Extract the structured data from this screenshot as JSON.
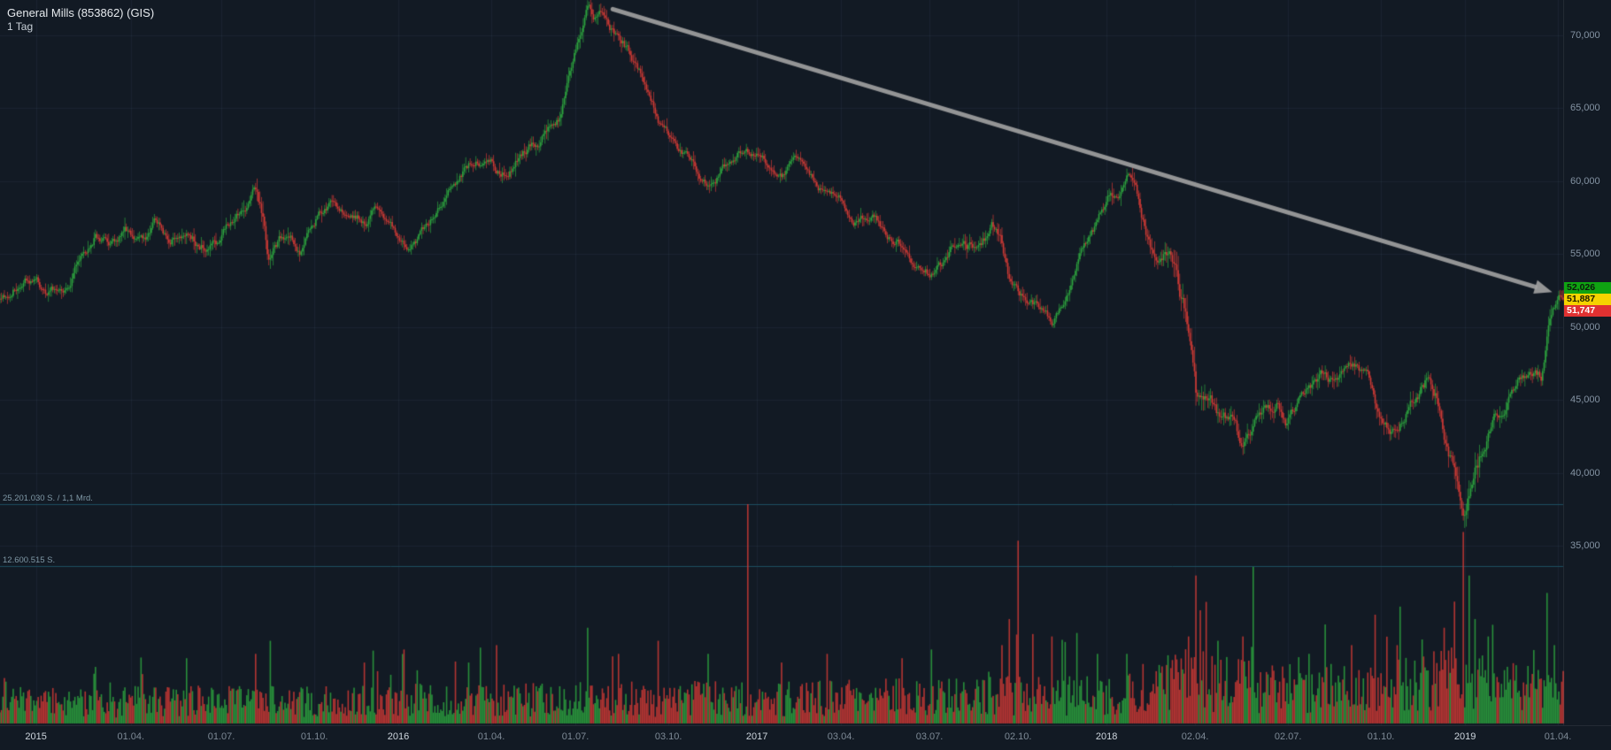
{
  "header": {
    "title": "General Mills (853862) (GIS)",
    "timeframe": "1 Tag"
  },
  "price_axis": {
    "labels": [
      "70,000",
      "65,000",
      "60,000",
      "55,000",
      "50,000",
      "45,000",
      "40,000",
      "35,000"
    ],
    "values": [
      70,
      65,
      60,
      55,
      50,
      45,
      40,
      35
    ]
  },
  "time_axis": [
    {
      "label": "2015",
      "t": 0.023,
      "major": true
    },
    {
      "label": "01.04.",
      "t": 0.0837,
      "major": false
    },
    {
      "label": "01.07.",
      "t": 0.1416,
      "major": false
    },
    {
      "label": "01.10.",
      "t": 0.2011,
      "major": false
    },
    {
      "label": "2016",
      "t": 0.2548,
      "major": true
    },
    {
      "label": "01.04.",
      "t": 0.3143,
      "major": false
    },
    {
      "label": "01.07.",
      "t": 0.3681,
      "major": false
    },
    {
      "label": "03.10.",
      "t": 0.4276,
      "major": false
    },
    {
      "label": "2017",
      "t": 0.4842,
      "major": true
    },
    {
      "label": "03.04.",
      "t": 0.538,
      "major": false
    },
    {
      "label": "03.07.",
      "t": 0.5946,
      "major": false
    },
    {
      "label": "02.10.",
      "t": 0.6513,
      "major": false
    },
    {
      "label": "2018",
      "t": 0.7079,
      "major": true
    },
    {
      "label": "02.04.",
      "t": 0.7645,
      "major": false
    },
    {
      "label": "02.07.",
      "t": 0.824,
      "major": false
    },
    {
      "label": "01.10.",
      "t": 0.8834,
      "major": false
    },
    {
      "label": "2019",
      "t": 0.9372,
      "major": true
    },
    {
      "label": "01.04.",
      "t": 0.9966,
      "major": false
    }
  ],
  "price_tags": [
    {
      "name": "ask",
      "label": "52,026",
      "value": 52.026,
      "bg": "#0fa312",
      "fg": "#0b1a0b"
    },
    {
      "name": "last",
      "label": "51,887",
      "value": 51.887,
      "bg": "#f5d300",
      "fg": "#1a1a00"
    },
    {
      "name": "bid",
      "label": "51,747",
      "value": 51.747,
      "bg": "#e03131",
      "fg": "#ffffff"
    }
  ],
  "volume_levels": [
    {
      "label": "25.201.030 S. / 1,1 Mrd.",
      "value": 25201030
    },
    {
      "label": "12.600.515 S.",
      "value": 12600515
    }
  ],
  "colors": {
    "background": "#121a24",
    "grid": "rgba(130,155,185,0.08)",
    "bull": "#2da33e",
    "bear": "#cf3a35",
    "volume_line": "#1d4e60",
    "arrow": "#a2a2a2",
    "axis_text": "#8493a3",
    "axis_text_major": "#cdd5dd"
  },
  "chart_data": {
    "type": "candlestick",
    "title": "General Mills (853862) (GIS)",
    "timeframe": "1 Tag",
    "x_range": [
      "2015-01",
      "2019-04"
    ],
    "y_range": [
      33,
      73.5
    ],
    "y_unit": "price, German decimal-comma format (e.g. 52,026)",
    "legend_position": "none",
    "grid": true,
    "current_prices": {
      "ask": 52.026,
      "last": 51.887,
      "bid": 51.747
    },
    "trend_arrow": {
      "from_t": 0.392,
      "from_price": 71.8,
      "to_t": 0.993,
      "to_price": 52.4
    },
    "price_anchors": [
      [
        0.0,
        51.9
      ],
      [
        0.01,
        53.1
      ],
      [
        0.023,
        53.6
      ],
      [
        0.03,
        52.0
      ],
      [
        0.036,
        52.6
      ],
      [
        0.042,
        52.9
      ],
      [
        0.052,
        54.9
      ],
      [
        0.061,
        56.4
      ],
      [
        0.071,
        55.7
      ],
      [
        0.08,
        56.5
      ],
      [
        0.09,
        55.9
      ],
      [
        0.099,
        56.9
      ],
      [
        0.109,
        56.0
      ],
      [
        0.119,
        57.0
      ],
      [
        0.128,
        55.9
      ],
      [
        0.138,
        55.8
      ],
      [
        0.148,
        57.2
      ],
      [
        0.157,
        58.5
      ],
      [
        0.164,
        59.6
      ],
      [
        0.169,
        57.0
      ],
      [
        0.1725,
        54.3
      ],
      [
        0.176,
        55.9
      ],
      [
        0.186,
        56.5
      ],
      [
        0.192,
        55.3
      ],
      [
        0.195,
        56.0
      ],
      [
        0.205,
        58.0
      ],
      [
        0.214,
        58.4
      ],
      [
        0.224,
        56.9
      ],
      [
        0.233,
        57.3
      ],
      [
        0.243,
        58.3
      ],
      [
        0.252,
        56.8
      ],
      [
        0.262,
        54.9
      ],
      [
        0.271,
        56.3
      ],
      [
        0.281,
        58.4
      ],
      [
        0.29,
        59.6
      ],
      [
        0.3,
        61.1
      ],
      [
        0.31,
        61.6
      ],
      [
        0.32,
        60.7
      ],
      [
        0.329,
        61.3
      ],
      [
        0.339,
        62.7
      ],
      [
        0.348,
        63.3
      ],
      [
        0.358,
        64.6
      ],
      [
        0.364,
        67.0
      ],
      [
        0.37,
        70.3
      ],
      [
        0.3755,
        72.4
      ],
      [
        0.381,
        71.1
      ],
      [
        0.388,
        71.6
      ],
      [
        0.396,
        70.1
      ],
      [
        0.403,
        68.9
      ],
      [
        0.41,
        67.6
      ],
      [
        0.415,
        66.0
      ],
      [
        0.421,
        64.3
      ],
      [
        0.424,
        63.6
      ],
      [
        0.434,
        61.9
      ],
      [
        0.443,
        61.1
      ],
      [
        0.453,
        59.7
      ],
      [
        0.463,
        60.9
      ],
      [
        0.472,
        62.1
      ],
      [
        0.481,
        61.8
      ],
      [
        0.491,
        61.1
      ],
      [
        0.5,
        60.3
      ],
      [
        0.51,
        61.3
      ],
      [
        0.52,
        60.4
      ],
      [
        0.529,
        59.2
      ],
      [
        0.539,
        58.6
      ],
      [
        0.549,
        57.4
      ],
      [
        0.558,
        57.7
      ],
      [
        0.568,
        56.2
      ],
      [
        0.577,
        55.6
      ],
      [
        0.587,
        54.1
      ],
      [
        0.596,
        53.6
      ],
      [
        0.606,
        54.9
      ],
      [
        0.616,
        56.1
      ],
      [
        0.625,
        55.3
      ],
      [
        0.635,
        56.9
      ],
      [
        0.641,
        55.4
      ],
      [
        0.646,
        52.7
      ],
      [
        0.654,
        52.0
      ],
      [
        0.664,
        51.2
      ],
      [
        0.673,
        50.2
      ],
      [
        0.683,
        52.6
      ],
      [
        0.692,
        54.9
      ],
      [
        0.702,
        57.0
      ],
      [
        0.708,
        58.7
      ],
      [
        0.715,
        59.4
      ],
      [
        0.721,
        60.4
      ],
      [
        0.727,
        58.9
      ],
      [
        0.731,
        57.1
      ],
      [
        0.74,
        54.4
      ],
      [
        0.746,
        55.4
      ],
      [
        0.752,
        53.7
      ],
      [
        0.758,
        50.9
      ],
      [
        0.762,
        49.4
      ],
      [
        0.7655,
        45.4
      ],
      [
        0.769,
        44.9
      ],
      [
        0.774,
        45.7
      ],
      [
        0.779,
        44.3
      ],
      [
        0.785,
        43.9
      ],
      [
        0.79,
        43.3
      ],
      [
        0.795,
        41.4
      ],
      [
        0.8,
        42.4
      ],
      [
        0.808,
        44.0
      ],
      [
        0.817,
        45.0
      ],
      [
        0.823,
        43.7
      ],
      [
        0.827,
        44.4
      ],
      [
        0.837,
        46.0
      ],
      [
        0.846,
        46.7
      ],
      [
        0.856,
        45.9
      ],
      [
        0.865,
        47.3
      ],
      [
        0.875,
        46.6
      ],
      [
        0.88,
        44.4
      ],
      [
        0.884,
        43.8
      ],
      [
        0.894,
        42.6
      ],
      [
        0.9,
        44.1
      ],
      [
        0.904,
        44.9
      ],
      [
        0.913,
        46.3
      ],
      [
        0.919,
        45.1
      ],
      [
        0.923,
        43.1
      ],
      [
        0.93,
        40.6
      ],
      [
        0.9365,
        36.7
      ],
      [
        0.94,
        38.5
      ],
      [
        0.944,
        40.0
      ],
      [
        0.952,
        42.9
      ],
      [
        0.958,
        43.9
      ],
      [
        0.961,
        44.4
      ],
      [
        0.971,
        46.7
      ],
      [
        0.98,
        47.2
      ],
      [
        0.986,
        46.8
      ],
      [
        0.99,
        49.9
      ],
      [
        0.994,
        51.2
      ],
      [
        1.0,
        51.9
      ]
    ],
    "volatility_anchors": [
      [
        0,
        0.9
      ],
      [
        0.15,
        1.0
      ],
      [
        0.17,
        1.4
      ],
      [
        0.19,
        0.9
      ],
      [
        0.3,
        0.9
      ],
      [
        0.37,
        1.2
      ],
      [
        0.4,
        1.0
      ],
      [
        0.46,
        0.9
      ],
      [
        0.55,
        0.85
      ],
      [
        0.64,
        1.1
      ],
      [
        0.66,
        0.9
      ],
      [
        0.7,
        0.9
      ],
      [
        0.73,
        1.3
      ],
      [
        0.762,
        1.8
      ],
      [
        0.78,
        1.3
      ],
      [
        0.83,
        1.0
      ],
      [
        0.9,
        1.1
      ],
      [
        0.92,
        1.4
      ],
      [
        0.94,
        1.9
      ],
      [
        0.955,
        1.2
      ],
      [
        1,
        1.0
      ]
    ],
    "volume_base_millions": [
      [
        0,
        2.2
      ],
      [
        0.25,
        2.4
      ],
      [
        0.48,
        2.6
      ],
      [
        0.6,
        2.8
      ],
      [
        0.71,
        3.0
      ],
      [
        0.762,
        4.6
      ],
      [
        0.8,
        3.8
      ],
      [
        0.88,
        3.6
      ],
      [
        0.925,
        4.8
      ],
      [
        0.97,
        3.6
      ],
      [
        1,
        3.2
      ]
    ],
    "volume_spikes_millions": [
      [
        0.061,
        6.5
      ],
      [
        0.119,
        7.5
      ],
      [
        0.164,
        8
      ],
      [
        0.1725,
        9.5
      ],
      [
        0.233,
        7
      ],
      [
        0.258,
        8.5
      ],
      [
        0.3,
        7
      ],
      [
        0.318,
        9
      ],
      [
        0.3755,
        11
      ],
      [
        0.396,
        8
      ],
      [
        0.421,
        9.5
      ],
      [
        0.453,
        8
      ],
      [
        0.4785,
        25.2
      ],
      [
        0.5,
        7
      ],
      [
        0.529,
        8
      ],
      [
        0.577,
        7.5
      ],
      [
        0.596,
        8.5
      ],
      [
        0.641,
        9
      ],
      [
        0.6455,
        12
      ],
      [
        0.6515,
        21
      ],
      [
        0.673,
        10
      ],
      [
        0.702,
        8
      ],
      [
        0.721,
        8
      ],
      [
        0.76,
        10
      ],
      [
        0.7655,
        17
      ],
      [
        0.768,
        13
      ],
      [
        0.779,
        9.5
      ],
      [
        0.795,
        10
      ],
      [
        0.8013,
        18
      ],
      [
        0.837,
        8
      ],
      [
        0.865,
        9
      ],
      [
        0.88,
        12.5
      ],
      [
        0.894,
        9
      ],
      [
        0.9235,
        11
      ],
      [
        0.93,
        14
      ],
      [
        0.9365,
        22
      ],
      [
        0.94,
        17
      ],
      [
        0.944,
        12
      ],
      [
        0.952,
        10
      ],
      [
        0.99,
        15
      ],
      [
        0.9945,
        9
      ]
    ]
  },
  "render": {
    "seed": 42,
    "candle_count": 1065
  }
}
